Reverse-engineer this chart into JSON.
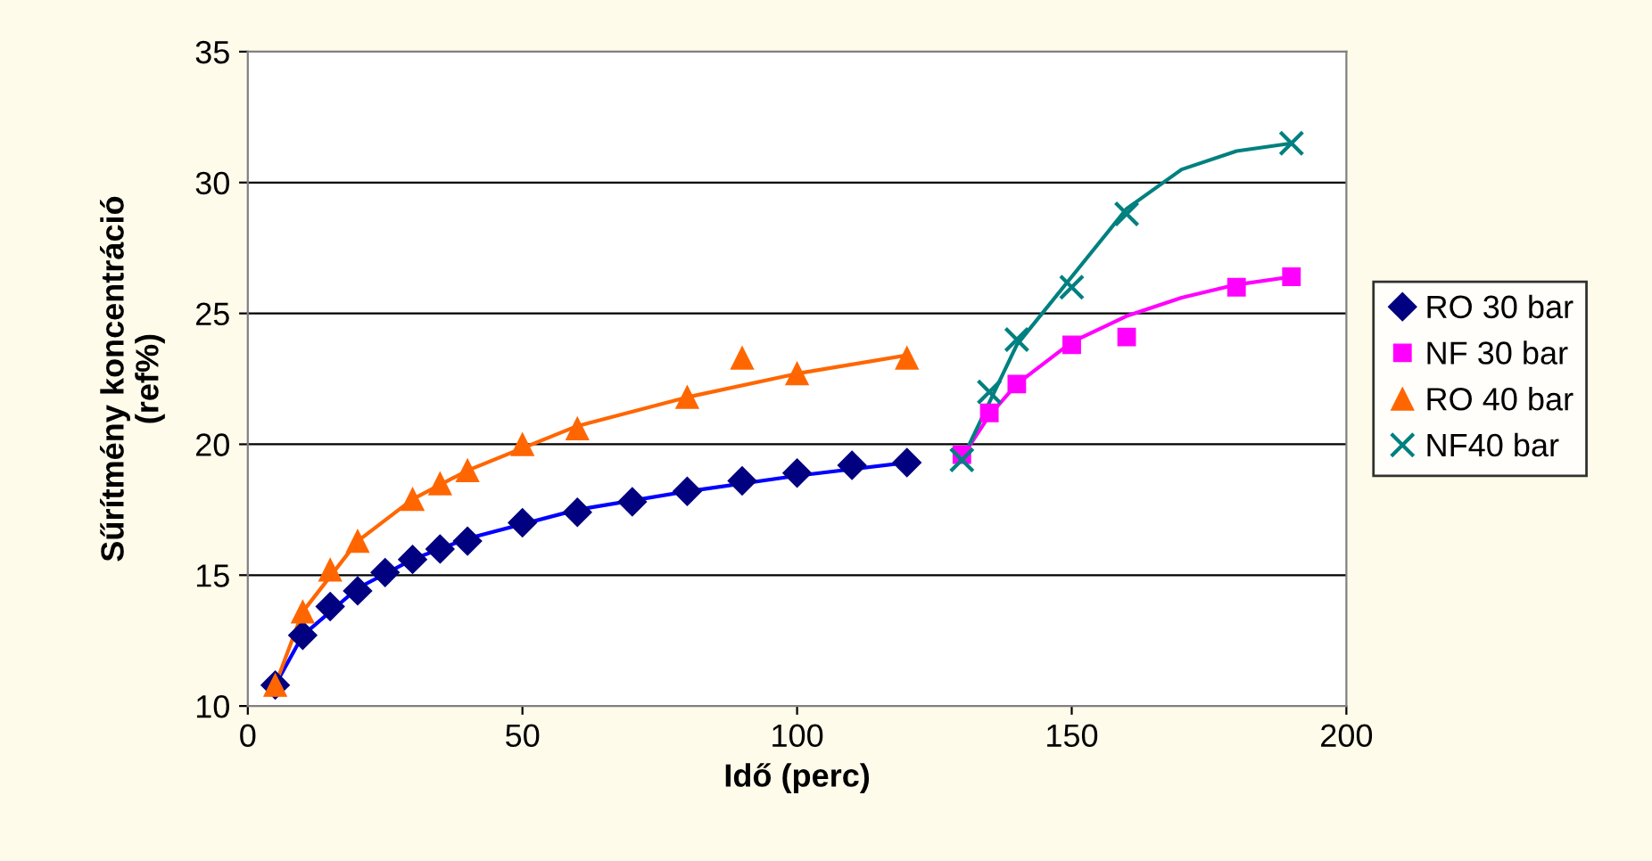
{
  "chart_data": {
    "type": "scatter",
    "xlabel": "Idő (perc)",
    "ylabel": "Sűrítmény koncentráció\n(ref%)",
    "xlim": [
      0,
      200
    ],
    "xticks": [
      0,
      50,
      100,
      150,
      200
    ],
    "ylim": [
      10,
      35
    ],
    "yticks": [
      10,
      15,
      20,
      25,
      30,
      35
    ],
    "grid": "y",
    "legend": "right",
    "series": [
      {
        "name": "RO 30 bar",
        "marker": "diamond",
        "color": "#000080",
        "x": [
          5,
          10,
          15,
          20,
          25,
          30,
          35,
          40,
          50,
          60,
          70,
          80,
          90,
          100,
          110,
          120
        ],
        "values": [
          10.8,
          12.7,
          13.8,
          14.4,
          15.1,
          15.6,
          16.0,
          16.3,
          17.0,
          17.4,
          17.8,
          18.2,
          18.6,
          18.9,
          19.2,
          19.3
        ]
      },
      {
        "name": "NF 30 bar",
        "marker": "square",
        "color": "#ff00ff",
        "x": [
          130,
          135,
          140,
          150,
          160,
          180,
          190
        ],
        "values": [
          19.6,
          21.2,
          22.3,
          23.8,
          24.1,
          26.0,
          26.4
        ]
      },
      {
        "name": "RO 40 bar",
        "marker": "triangle",
        "color": "#ff6600",
        "x": [
          5,
          10,
          15,
          20,
          30,
          35,
          40,
          50,
          60,
          80,
          90,
          100,
          120
        ],
        "values": [
          10.8,
          13.6,
          15.2,
          16.3,
          17.9,
          18.5,
          19.0,
          20.0,
          20.6,
          21.8,
          23.3,
          22.7,
          23.3
        ]
      },
      {
        "name": "NF40 bar",
        "marker": "cross",
        "color": "#008080",
        "x": [
          130,
          135,
          140,
          150,
          160,
          190
        ],
        "values": [
          19.4,
          22.0,
          24.0,
          26.0,
          28.8,
          31.5
        ]
      },
      {
        "type": "line",
        "color": "#0000ff",
        "x": [
          5,
          10,
          20,
          30,
          40,
          60,
          80,
          100,
          120
        ],
        "values": [
          10.8,
          12.7,
          14.5,
          15.6,
          16.4,
          17.5,
          18.2,
          18.8,
          19.3
        ]
      },
      {
        "type": "line",
        "color": "#ff00ff",
        "x": [
          130,
          135,
          140,
          150,
          160,
          170,
          180,
          190
        ],
        "values": [
          19.5,
          21.1,
          22.3,
          23.9,
          24.9,
          25.6,
          26.1,
          26.4
        ]
      },
      {
        "type": "line",
        "color": "#ff6600",
        "x": [
          5,
          10,
          20,
          30,
          40,
          60,
          80,
          100,
          120
        ],
        "values": [
          10.8,
          13.6,
          16.3,
          17.9,
          19.0,
          20.7,
          21.8,
          22.7,
          23.4
        ]
      },
      {
        "type": "line",
        "color": "#008080",
        "x": [
          130,
          140,
          150,
          160,
          170,
          180,
          190
        ],
        "values": [
          19.4,
          23.8,
          26.4,
          29.0,
          30.5,
          31.2,
          31.5
        ]
      }
    ]
  }
}
